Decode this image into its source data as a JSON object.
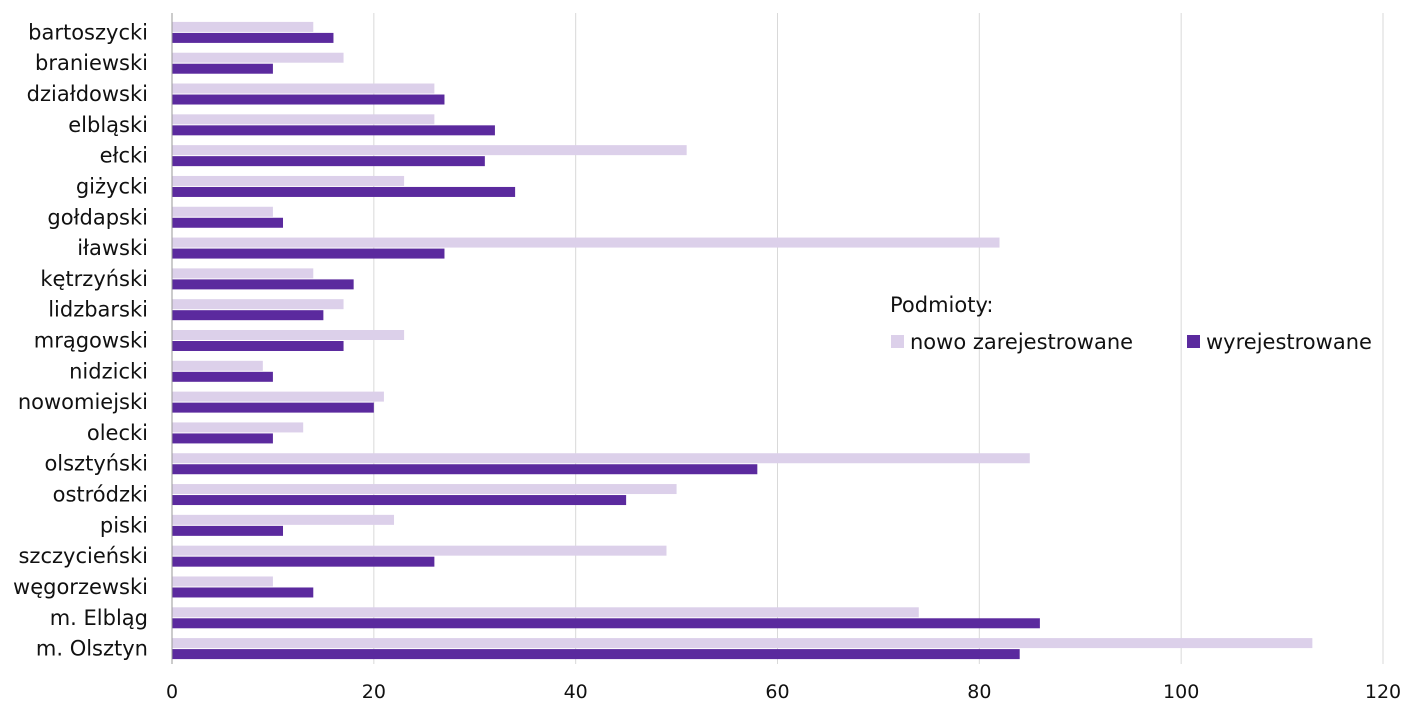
{
  "chart_data": {
    "type": "bar",
    "orientation": "horizontal",
    "categories": [
      "bartoszycki",
      "braniewski",
      "działdowski",
      "elbląski",
      "ełcki",
      "giżycki",
      "gołdapski",
      "iławski",
      "kętrzyński",
      "lidzbarski",
      "mrągowski",
      "nidzicki",
      "nowomiejski",
      "olecki",
      "olsztyński",
      "ostródzki",
      "piski",
      "szczycieński",
      "węgorzewski",
      "m. Elbląg",
      "m. Olsztyn"
    ],
    "series": [
      {
        "name": "nowo zarejestrowane",
        "color": "#dcd0ea",
        "values": [
          14,
          17,
          26,
          26,
          51,
          23,
          10,
          82,
          14,
          17,
          23,
          9,
          21,
          13,
          85,
          50,
          22,
          49,
          10,
          74,
          113
        ]
      },
      {
        "name": "wyrejestrowane",
        "color": "#5b2a9e",
        "values": [
          16,
          10,
          27,
          32,
          31,
          34,
          11,
          27,
          18,
          15,
          17,
          10,
          20,
          10,
          58,
          45,
          11,
          26,
          14,
          86,
          84
        ]
      }
    ],
    "xlim": [
      0,
      120
    ],
    "xticks": [
      "0",
      "20",
      "40",
      "60",
      "80",
      "100",
      "120"
    ],
    "grid": "vertical",
    "legend": {
      "title": "Podmioty:",
      "position": "right-middle"
    }
  }
}
